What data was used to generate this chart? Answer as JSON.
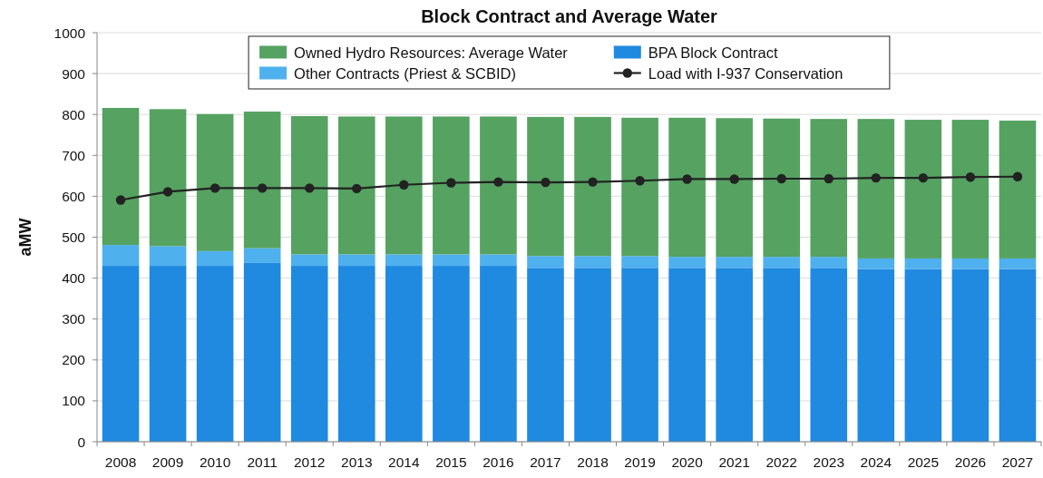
{
  "chart_data": {
    "type": "bar",
    "title": "Block Contract and Average Water",
    "ylabel": "aMW",
    "categories": [
      "2008",
      "2009",
      "2010",
      "2011",
      "2012",
      "2013",
      "2014",
      "2015",
      "2016",
      "2017",
      "2018",
      "2019",
      "2020",
      "2021",
      "2022",
      "2023",
      "2024",
      "2025",
      "2026",
      "2027"
    ],
    "series": [
      {
        "name": "BPA Block Contract",
        "color": "#1f8ae0",
        "values": [
          430,
          430,
          430,
          437,
          430,
          430,
          430,
          430,
          430,
          425,
          425,
          425,
          425,
          425,
          425,
          425,
          422,
          422,
          422,
          422
        ]
      },
      {
        "name": "Other Contracts (Priest & SCBID)",
        "color": "#4fb0ee",
        "values": [
          51,
          48,
          36,
          36,
          28,
          28,
          28,
          28,
          28,
          29,
          29,
          29,
          27,
          27,
          27,
          27,
          26,
          26,
          26,
          26
        ]
      },
      {
        "name": "Owned Hydro Resources: Average Water",
        "color": "#55a261",
        "values": [
          335,
          335,
          335,
          334,
          338,
          337,
          337,
          337,
          337,
          340,
          340,
          338,
          340,
          339,
          338,
          337,
          341,
          339,
          339,
          337
        ]
      },
      {
        "name": "Load with I-937 Conservation",
        "type": "line",
        "color": "#222222",
        "values": [
          591,
          611,
          620,
          620,
          620,
          619,
          628,
          633,
          635,
          634,
          635,
          638,
          642,
          642,
          643,
          643,
          645,
          645,
          647,
          648
        ]
      }
    ],
    "stacked": true,
    "ylim": [
      0,
      1000
    ],
    "yticks": [
      0,
      100,
      200,
      300,
      400,
      500,
      600,
      700,
      800,
      900,
      1000
    ],
    "grid": "y",
    "legend": "top",
    "marker": "circle",
    "line_style": "solid"
  }
}
